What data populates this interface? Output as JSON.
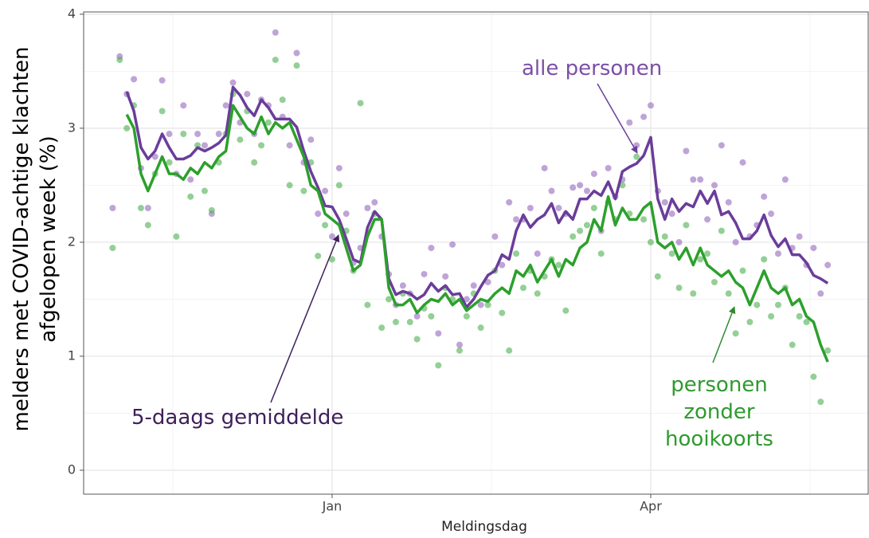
{
  "chart_data": {
    "type": "line",
    "x_label": "Meldingsdag",
    "y_label": "melders met COVID-achtige klachten\nafgelopen week (%)",
    "annotations": [
      "5-daags gemiddelde"
    ],
    "categories": [
      null,
      null,
      null,
      null,
      null,
      null,
      null,
      null,
      null,
      null,
      null,
      null,
      null,
      null,
      null,
      null,
      null,
      null,
      null,
      null,
      null,
      null,
      null,
      null,
      null,
      null,
      null,
      null,
      null,
      null,
      null,
      "Jan",
      null,
      null,
      null,
      null,
      null,
      null,
      null,
      null,
      null,
      null,
      null,
      null,
      null,
      null,
      null,
      null,
      null,
      null,
      null,
      null,
      null,
      null,
      null,
      null,
      null,
      null,
      null,
      null,
      null,
      null,
      null,
      null,
      null,
      null,
      null,
      null,
      null,
      null,
      null,
      null,
      null,
      null,
      null,
      null,
      "Apr",
      null,
      null,
      null,
      null,
      null,
      null,
      null,
      null,
      null,
      null,
      null,
      null,
      null,
      null,
      null,
      null,
      null,
      null,
      null,
      null,
      null,
      null,
      null,
      null,
      null
    ],
    "ylim": [
      -0.21,
      4.02
    ],
    "yticks": [
      0,
      1,
      2,
      3,
      4
    ],
    "grid": true,
    "series": [
      {
        "kind": "points",
        "color": "#9467bd",
        "values": [
          2.3,
          3.63,
          3.3,
          3.43,
          2.65,
          2.3,
          2.75,
          3.42,
          2.95,
          2.6,
          3.2,
          2.55,
          2.95,
          2.85,
          2.25,
          2.95,
          3.2,
          3.4,
          3.05,
          3.3,
          2.95,
          3.25,
          3.2,
          3.84,
          3.1,
          2.85,
          3.66,
          2.7,
          2.9,
          2.25,
          2.45,
          2.05,
          2.65,
          2.25,
          1.82,
          1.95,
          2.3,
          2.35,
          2.05,
          1.72,
          1.45,
          1.62,
          1.55,
          1.35,
          1.72,
          1.95,
          1.2,
          1.7,
          1.98,
          1.1,
          1.5,
          1.62,
          1.45,
          1.65,
          2.05,
          1.8,
          2.35,
          2.2,
          2.2,
          2.3,
          1.9,
          2.65,
          2.45,
          2.3,
          2.25,
          2.48,
          2.5,
          2.45,
          2.6,
          2.1,
          2.65,
          2.4,
          2.55,
          3.05,
          2.85,
          3.1,
          3.2,
          2.45,
          2.35,
          2.25,
          2.0,
          2.8,
          2.55,
          2.55,
          2.2,
          2.5,
          2.85,
          2.35,
          2.0,
          2.7,
          2.05,
          2.15,
          2.4,
          2.25,
          1.9,
          2.55,
          1.95,
          2.05,
          1.8,
          1.95,
          1.55,
          1.8
        ]
      },
      {
        "kind": "points",
        "color": "#4caf50",
        "values": [
          1.95,
          3.6,
          3.0,
          3.2,
          2.3,
          2.15,
          2.6,
          3.15,
          2.7,
          2.05,
          2.95,
          2.4,
          2.85,
          2.45,
          2.28,
          2.7,
          2.95,
          3.3,
          2.9,
          3.15,
          2.7,
          2.85,
          3.05,
          3.6,
          3.25,
          2.5,
          3.55,
          2.45,
          2.7,
          1.88,
          2.15,
          1.85,
          2.5,
          2.1,
          1.75,
          3.22,
          1.45,
          2.25,
          1.25,
          1.5,
          1.3,
          1.55,
          1.3,
          1.15,
          1.42,
          1.35,
          0.92,
          1.6,
          1.5,
          1.05,
          1.35,
          1.55,
          1.25,
          1.45,
          1.75,
          1.38,
          1.05,
          1.9,
          1.6,
          1.75,
          1.55,
          1.7,
          1.85,
          1.8,
          1.4,
          2.05,
          2.1,
          2.15,
          2.3,
          1.9,
          2.35,
          2.2,
          2.5,
          2.25,
          2.75,
          2.2,
          2.0,
          1.7,
          2.05,
          1.9,
          1.6,
          2.15,
          1.55,
          1.85,
          1.9,
          1.65,
          2.1,
          1.55,
          1.2,
          1.75,
          1.3,
          1.45,
          1.85,
          1.35,
          1.45,
          1.6,
          1.1,
          1.35,
          1.3,
          0.82,
          0.6,
          1.05
        ]
      },
      {
        "kind": "line",
        "name": "alle personen",
        "color": "#6a3d9a",
        "values": [
          null,
          null,
          3.32,
          3.15,
          2.83,
          2.73,
          2.8,
          2.95,
          2.83,
          2.73,
          2.73,
          2.76,
          2.83,
          2.8,
          2.83,
          2.87,
          2.94,
          3.36,
          3.29,
          3.18,
          3.11,
          3.25,
          3.18,
          3.08,
          3.08,
          3.08,
          3.01,
          2.8,
          2.62,
          2.48,
          2.32,
          2.31,
          2.2,
          2.03,
          1.85,
          1.82,
          2.13,
          2.27,
          2.2,
          1.68,
          1.54,
          1.57,
          1.55,
          1.5,
          1.54,
          1.64,
          1.57,
          1.62,
          1.54,
          1.55,
          1.43,
          1.5,
          1.61,
          1.71,
          1.75,
          1.89,
          1.85,
          2.1,
          2.24,
          2.13,
          2.2,
          2.24,
          2.34,
          2.17,
          2.27,
          2.2,
          2.38,
          2.38,
          2.45,
          2.41,
          2.53,
          2.38,
          2.62,
          2.66,
          2.69,
          2.76,
          2.92,
          2.38,
          2.2,
          2.38,
          2.27,
          2.34,
          2.31,
          2.45,
          2.34,
          2.45,
          2.24,
          2.27,
          2.17,
          2.03,
          2.03,
          2.1,
          2.24,
          2.06,
          1.96,
          2.03,
          1.89,
          1.89,
          1.82,
          1.71,
          1.68,
          1.64
        ]
      },
      {
        "kind": "line",
        "name": "personen\nzonder hooikoorts",
        "color": "#2ca02c",
        "values": [
          null,
          null,
          3.12,
          3.0,
          2.6,
          2.45,
          2.6,
          2.75,
          2.6,
          2.6,
          2.55,
          2.65,
          2.6,
          2.7,
          2.65,
          2.75,
          2.8,
          3.2,
          3.1,
          3.0,
          2.95,
          3.1,
          2.95,
          3.05,
          3.0,
          3.05,
          2.9,
          2.75,
          2.5,
          2.45,
          2.25,
          2.2,
          2.15,
          1.95,
          1.75,
          1.8,
          2.05,
          2.2,
          2.2,
          1.6,
          1.45,
          1.45,
          1.5,
          1.38,
          1.45,
          1.5,
          1.48,
          1.55,
          1.45,
          1.5,
          1.4,
          1.45,
          1.5,
          1.48,
          1.55,
          1.6,
          1.55,
          1.75,
          1.7,
          1.8,
          1.65,
          1.75,
          1.85,
          1.7,
          1.85,
          1.8,
          1.95,
          2.0,
          2.2,
          2.1,
          2.4,
          2.15,
          2.3,
          2.2,
          2.2,
          2.3,
          2.35,
          2.0,
          1.95,
          2.0,
          1.85,
          1.95,
          1.8,
          1.95,
          1.8,
          1.75,
          1.7,
          1.75,
          1.65,
          1.6,
          1.45,
          1.6,
          1.75,
          1.6,
          1.55,
          1.6,
          1.45,
          1.5,
          1.35,
          1.3,
          1.1,
          0.95
        ]
      }
    ]
  }
}
